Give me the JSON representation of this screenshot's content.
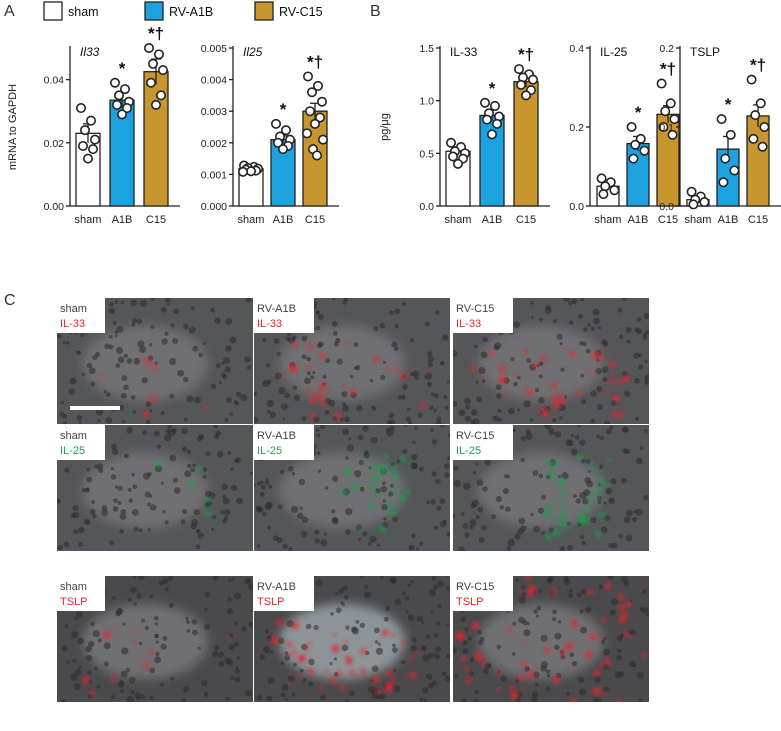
{
  "panel_labels": {
    "a": "A",
    "b": "B",
    "c": "C"
  },
  "legend": {
    "sham": {
      "label": "sham",
      "color": "#ffffff"
    },
    "a1b": {
      "label": "RV-A1B",
      "color": "#1ea1df"
    },
    "c15": {
      "label": "RV-C15",
      "color": "#c8962f"
    }
  },
  "category_labels": [
    "sham",
    "A1B",
    "C15"
  ],
  "significance": {
    "star": "*",
    "star_dagger": "*†"
  },
  "chart_data": [
    {
      "id": "il33-mrna",
      "type": "bar",
      "title": "Il33",
      "title_italic": true,
      "ylabel": "mRNA to GAPDH",
      "ylim": [
        0,
        0.05
      ],
      "ticks": [
        0.0,
        0.02,
        0.04
      ],
      "tick_decimals": 2,
      "categories": [
        "sham",
        "A1B",
        "C15"
      ],
      "values": [
        0.023,
        0.0335,
        0.0425
      ],
      "sem": [
        0.003,
        0.0025,
        0.004
      ],
      "points": [
        [
          0.031,
          0.027,
          0.024,
          0.021,
          0.019,
          0.018,
          0.015
        ],
        [
          0.039,
          0.037,
          0.035,
          0.033,
          0.032,
          0.031,
          0.029
        ],
        [
          0.05,
          0.048,
          0.045,
          0.043,
          0.039,
          0.035,
          0.032
        ]
      ],
      "annotations": [
        "",
        "*",
        "*†"
      ]
    },
    {
      "id": "il25-mrna",
      "type": "bar",
      "title": "Il25",
      "title_italic": true,
      "ylabel": "",
      "ylim": [
        0,
        0.005
      ],
      "ticks": [
        0.0,
        0.001,
        0.002,
        0.003,
        0.004,
        0.005
      ],
      "tick_decimals": 3,
      "categories": [
        "sham",
        "A1B",
        "C15"
      ],
      "values": [
        0.00118,
        0.0021,
        0.003
      ],
      "sem": [
        5e-05,
        0.00012,
        0.00025
      ],
      "points": [
        [
          0.00128,
          0.00124,
          0.0012,
          0.00118,
          0.00115,
          0.00112,
          0.0011,
          0.00108
        ],
        [
          0.0026,
          0.0024,
          0.0022,
          0.0021,
          0.002,
          0.0019,
          0.0018
        ],
        [
          0.0041,
          0.0038,
          0.0036,
          0.0033,
          0.003,
          0.0028,
          0.0026,
          0.0023,
          0.0021,
          0.0018,
          0.0016
        ]
      ],
      "annotations": [
        "",
        "*",
        "*†"
      ]
    },
    {
      "id": "il33-protein",
      "type": "bar",
      "title": "IL-33",
      "title_italic": false,
      "ylabel": "pg/μg",
      "ylim": [
        0,
        1.5
      ],
      "ticks": [
        0.0,
        0.5,
        1.0,
        1.5
      ],
      "tick_decimals": 1,
      "categories": [
        "sham",
        "A1B",
        "C15"
      ],
      "values": [
        0.52,
        0.86,
        1.18
      ],
      "sem": [
        0.04,
        0.05,
        0.05
      ],
      "points": [
        [
          0.6,
          0.56,
          0.52,
          0.5,
          0.47,
          0.45,
          0.4
        ],
        [
          0.98,
          0.95,
          0.88,
          0.85,
          0.82,
          0.78,
          0.68
        ],
        [
          1.3,
          1.25,
          1.22,
          1.2,
          1.15,
          1.1,
          1.05
        ]
      ],
      "annotations": [
        "",
        "*",
        "*†"
      ]
    },
    {
      "id": "il25-protein",
      "type": "bar",
      "title": "IL-25",
      "title_italic": false,
      "ylabel": "",
      "ylim": [
        0,
        0.4
      ],
      "ticks": [
        0.0,
        0.2,
        0.4
      ],
      "tick_decimals": 1,
      "categories": [
        "sham",
        "A1B",
        "C15"
      ],
      "values": [
        0.05,
        0.158,
        0.232
      ],
      "sem": [
        0.01,
        0.018,
        0.022
      ],
      "points": [
        [
          0.07,
          0.06,
          0.05,
          0.04,
          0.03
        ],
        [
          0.2,
          0.17,
          0.155,
          0.14,
          0.12
        ],
        [
          0.31,
          0.26,
          0.24,
          0.22,
          0.2,
          0.18
        ]
      ],
      "annotations": [
        "",
        "*",
        "*†"
      ]
    },
    {
      "id": "tslp-protein",
      "type": "bar",
      "title": "TSLP",
      "title_italic": false,
      "ylabel": "",
      "ylim": [
        0,
        0.2
      ],
      "ticks": [
        0.0,
        0.1,
        0.2
      ],
      "tick_decimals": 1,
      "categories": [
        "sham",
        "A1B",
        "C15"
      ],
      "values": [
        0.008,
        0.072,
        0.114
      ],
      "sem": [
        0.004,
        0.016,
        0.014
      ],
      "points": [
        [
          0.018,
          0.012,
          0.008,
          0.005,
          0.002
        ],
        [
          0.11,
          0.09,
          0.06,
          0.045,
          0.03
        ],
        [
          0.16,
          0.13,
          0.115,
          0.1,
          0.085,
          0.075
        ]
      ],
      "annotations": [
        "",
        "*",
        "*†"
      ]
    }
  ],
  "micrographs": {
    "scale_bar": true,
    "rows": [
      {
        "stain": "IL-33",
        "stain_color": "#e8262d",
        "cells": [
          "sham",
          "RV-A1B",
          "RV-C15"
        ]
      },
      {
        "stain": "IL-25",
        "stain_color": "#19a34a",
        "cells": [
          "sham",
          "RV-A1B",
          "RV-C15"
        ]
      },
      {
        "stain": "TSLP",
        "stain_color": "#e8262d",
        "cells": [
          "sham",
          "RV-A1B",
          "RV-C15"
        ]
      }
    ]
  }
}
